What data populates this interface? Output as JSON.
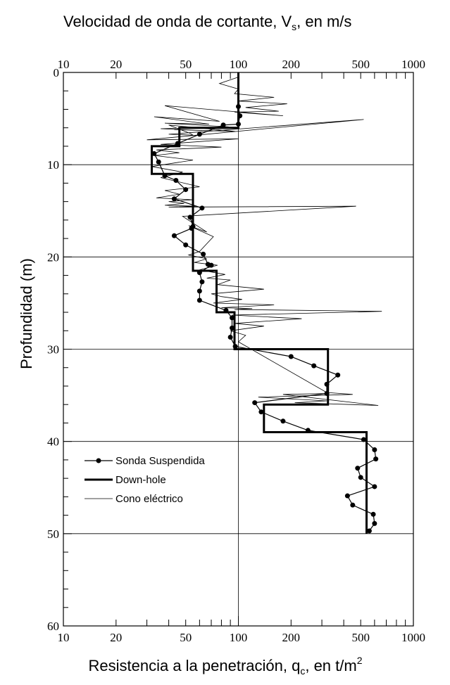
{
  "chart_data": {
    "type": "line",
    "title": "Velocidad de onda de cortante, V",
    "title_sub": "s",
    "title_suffix": ", en m/s",
    "xlabel": "Resistencia a la penetración, q",
    "xlabel_sub": "c",
    "xlabel_suffix": ", en t/m",
    "xlabel_sup": "2",
    "ylabel": "Profundidad  (m)",
    "x_scale": "log",
    "xlim": [
      10,
      1000
    ],
    "ylim": [
      0,
      60
    ],
    "y_inverted": true,
    "x_ticks": [
      10,
      20,
      50,
      100,
      200,
      500,
      1000
    ],
    "x_tick_labels": [
      "10",
      "20",
      "50",
      "100",
      "200",
      "500",
      "1000"
    ],
    "y_ticks": [
      0,
      10,
      20,
      30,
      40,
      50,
      60
    ],
    "y_tick_labels": [
      "0",
      "10",
      "20",
      "30",
      "40",
      "50",
      "60"
    ],
    "grid": "major",
    "legend_position": "lower-left",
    "series": [
      {
        "name": "Sonda Suspendida",
        "style": "line-marker",
        "x": [
          100,
          102,
          100,
          82,
          60,
          45,
          33,
          35,
          38,
          44,
          50,
          43,
          62,
          53,
          55,
          54,
          43,
          50,
          63,
          67,
          70,
          60,
          62,
          60,
          60,
          85,
          92,
          92,
          90,
          96,
          200,
          270,
          370,
          320,
          320,
          124,
          135,
          180,
          250,
          520,
          600,
          610,
          480,
          500,
          600,
          420,
          450,
          590,
          600,
          560
        ],
        "y": [
          3.7,
          4.7,
          5.6,
          5.7,
          6.7,
          7.7,
          8.8,
          9.7,
          11.2,
          11.7,
          12.7,
          13.7,
          14.7,
          15.7,
          16.7,
          16.9,
          17.7,
          18.7,
          19.7,
          20.8,
          20.9,
          21.7,
          22.7,
          23.7,
          24.7,
          25.8,
          26.6,
          27.7,
          28.7,
          29.7,
          30.8,
          31.8,
          32.8,
          33.8,
          34.8,
          35.8,
          36.8,
          37.8,
          38.8,
          39.8,
          40.9,
          41.9,
          42.9,
          43.9,
          44.9,
          45.9,
          46.9,
          47.9,
          48.9,
          49.7
        ]
      },
      {
        "name": "Down-hole",
        "style": "thick-step",
        "x": [
          100,
          100,
          46,
          46,
          32,
          32,
          55,
          55,
          75,
          75,
          95,
          95,
          325,
          325,
          140,
          140,
          540,
          540
        ],
        "y": [
          0,
          6,
          6,
          8,
          8,
          11,
          11,
          21.5,
          21.5,
          26,
          26,
          30,
          30,
          36,
          36,
          39,
          39,
          50
        ]
      },
      {
        "name": "Cono eléctrico",
        "style": "thin-line",
        "x": [
          100,
          78,
          100,
          95,
          160,
          100,
          190,
          110,
          170,
          95,
          180,
          38,
          78,
          33,
          68,
          38,
          88,
          36,
          62,
          43,
          96,
          40,
          53,
          55,
          40,
          520,
          30,
          100,
          36,
          80,
          34,
          46,
          33,
          55,
          32,
          48,
          36,
          60,
          38,
          46,
          34,
          55,
          40,
          49,
          38,
          58,
          40,
          470,
          48,
          66,
          52,
          72,
          60,
          52,
          66,
          56,
          76,
          60,
          84,
          66,
          90,
          76,
          140,
          70,
          80,
          105,
          72,
          160,
          80,
          120,
          95,
          660,
          92,
          230,
          95,
          140,
          90,
          110,
          100,
          320,
          450,
          130,
          320,
          210,
          630,
          180,
          330
        ],
        "y": [
          0.5,
          1.2,
          1.8,
          2.3,
          2.7,
          3.1,
          3.4,
          3.8,
          4.2,
          4.3,
          4.7,
          3.6,
          5.3,
          4.8,
          5.6,
          5.5,
          5.9,
          6.1,
          6.3,
          6.2,
          6.4,
          5.7,
          6.6,
          6.8,
          6.7,
          5.1,
          7.3,
          7.2,
          7.8,
          8.1,
          8.4,
          8.7,
          9.0,
          9.5,
          10.2,
          10.8,
          11.4,
          12.4,
          12.8,
          13.2,
          13.6,
          13.8,
          14.0,
          14.2,
          14.4,
          14.5,
          14.6,
          14.5,
          15.6,
          17.3,
          16.6,
          17.8,
          19.4,
          19.8,
          20.2,
          20.6,
          20.9,
          21.4,
          21.9,
          22.3,
          22.5,
          23.0,
          23.5,
          24.0,
          24.3,
          24.6,
          25.0,
          25.2,
          25.5,
          25.6,
          25.7,
          25.9,
          26.3,
          26.7,
          27.2,
          27.5,
          28.0,
          28.5,
          29.2,
          34.7,
          34.9,
          35.2,
          35.6,
          35.8,
          36.1,
          34.9,
          34.8
        ]
      }
    ]
  }
}
